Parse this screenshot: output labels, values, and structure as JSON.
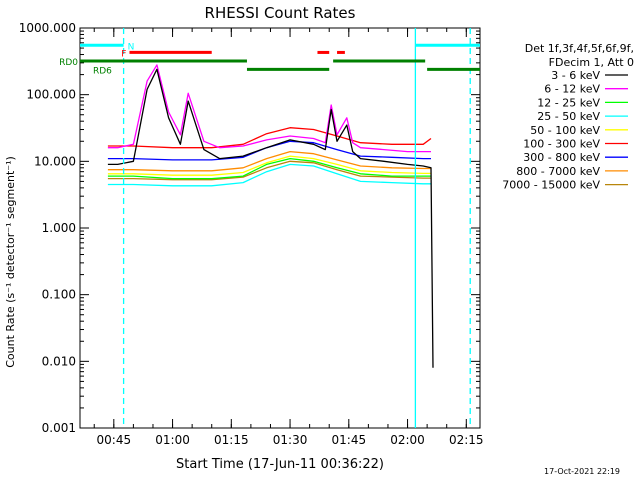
{
  "chart_data": {
    "type": "line",
    "title": "RHESSI Count Rates",
    "xlabel": "Start Time (17-Jun-11 00:36:22)",
    "ylabel": "Count Rate (s⁻¹ detector⁻¹ segment⁻¹)",
    "y_scale": "log",
    "ylim": [
      0.001,
      1000
    ],
    "y_ticks": [
      0.001,
      0.01,
      0.1,
      1,
      10,
      100,
      1000
    ],
    "y_tick_labels": [
      "0.001",
      "0.010",
      "0.100",
      "1.000",
      "10.000",
      "100.000",
      "1000.000"
    ],
    "xlim": [
      "00:36:22",
      "02:18:30"
    ],
    "x_tick_labels": [
      "00:45",
      "01:00",
      "01:15",
      "01:30",
      "01:45",
      "02:00",
      "02:15"
    ],
    "x_minor_step_minutes": 5,
    "grid": false,
    "legend_position": "right",
    "legend_header": [
      "Det 1f,3f,4f,5f,6f,9f,",
      "FDecim 1, Att 0"
    ],
    "data_start": "00:43:30",
    "data_end": "02:06:40",
    "series": [
      {
        "name": "3 - 6 keV",
        "color": "#000000",
        "x": [
          "00:43:30",
          "00:46:00",
          "00:50:00",
          "00:53:30",
          "00:56:00",
          "00:59:00",
          "01:02:00",
          "01:04:00",
          "01:08:00",
          "01:12:00",
          "01:18:00",
          "01:24:00",
          "01:30:00",
          "01:36:00",
          "01:39:00",
          "01:40:30",
          "01:42:00",
          "01:44:30",
          "01:46:00",
          "01:48:00",
          "01:54:00",
          "02:00:00",
          "02:04:00",
          "02:06:00",
          "02:06:30"
        ],
        "y": [
          9,
          9,
          10,
          120,
          240,
          45,
          18,
          80,
          15,
          11,
          12,
          16,
          21,
          18,
          15,
          60,
          20,
          35,
          14,
          11,
          10,
          9,
          8.5,
          8,
          0.008
        ]
      },
      {
        "name": "6 - 12 keV",
        "color": "#ff00ff",
        "x": [
          "00:43:30",
          "00:46:00",
          "00:50:00",
          "00:53:30",
          "00:56:00",
          "00:59:00",
          "01:02:00",
          "01:04:00",
          "01:08:00",
          "01:12:00",
          "01:18:00",
          "01:24:00",
          "01:30:00",
          "01:36:00",
          "01:39:00",
          "01:40:30",
          "01:42:00",
          "01:44:30",
          "01:46:00",
          "01:48:00",
          "01:54:00",
          "02:00:00",
          "02:04:00",
          "02:06:00"
        ],
        "y": [
          16,
          16,
          18,
          160,
          280,
          55,
          25,
          105,
          20,
          16,
          17,
          21,
          24,
          22,
          19,
          70,
          25,
          45,
          19,
          16,
          15,
          14,
          14,
          14
        ]
      },
      {
        "name": "12 - 25 keV",
        "color": "#00ff00",
        "x": [
          "00:43:30",
          "00:50:00",
          "01:00:00",
          "01:10:00",
          "01:18:00",
          "01:24:00",
          "01:30:00",
          "01:36:00",
          "01:42:00",
          "01:48:00",
          "01:56:00",
          "02:04:00",
          "02:06:00"
        ],
        "y": [
          6,
          6,
          5.5,
          5.5,
          6,
          9,
          11,
          10,
          8,
          6.5,
          6,
          6,
          6
        ]
      },
      {
        "name": "25 - 50 keV",
        "color": "#00ffff",
        "x": [
          "00:43:30",
          "00:50:00",
          "01:00:00",
          "01:10:00",
          "01:18:00",
          "01:24:00",
          "01:30:00",
          "01:36:00",
          "01:42:00",
          "01:48:00",
          "01:56:00",
          "02:04:00",
          "02:06:00"
        ],
        "y": [
          4.5,
          4.5,
          4.3,
          4.3,
          4.8,
          7,
          9,
          8.5,
          6.5,
          5,
          4.8,
          4.6,
          4.6
        ]
      },
      {
        "name": "50 - 100 keV",
        "color": "#ffff00",
        "x": [
          "00:43:30",
          "00:50:00",
          "01:00:00",
          "01:10:00",
          "01:18:00",
          "01:24:00",
          "01:30:00",
          "01:36:00",
          "01:42:00",
          "01:48:00",
          "01:56:00",
          "02:04:00",
          "02:06:00"
        ],
        "y": [
          6.5,
          6.5,
          6.2,
          6.2,
          6.8,
          9.5,
          12,
          11,
          9,
          7.2,
          6.8,
          6.6,
          6.6
        ]
      },
      {
        "name": "100 - 300 keV",
        "color": "#ff0000",
        "x": [
          "00:43:30",
          "00:50:00",
          "01:00:00",
          "01:10:00",
          "01:18:00",
          "01:24:00",
          "01:30:00",
          "01:36:00",
          "01:42:00",
          "01:48:00",
          "01:56:00",
          "02:04:00",
          "02:06:00"
        ],
        "y": [
          17,
          17,
          16,
          16,
          18,
          26,
          32,
          30,
          24,
          19,
          18,
          18,
          22
        ]
      },
      {
        "name": "300 - 800 keV",
        "color": "#0000ff",
        "x": [
          "00:43:30",
          "00:50:00",
          "01:00:00",
          "01:10:00",
          "01:18:00",
          "01:24:00",
          "01:30:00",
          "01:36:00",
          "01:42:00",
          "01:48:00",
          "01:56:00",
          "02:04:00",
          "02:06:00"
        ],
        "y": [
          11,
          11,
          10.5,
          10.5,
          11.5,
          16,
          20,
          19,
          15,
          12,
          11.5,
          11,
          11
        ]
      },
      {
        "name": "800 - 7000 keV",
        "color": "#ff8c00",
        "x": [
          "00:43:30",
          "00:50:00",
          "01:00:00",
          "01:10:00",
          "01:18:00",
          "01:24:00",
          "01:30:00",
          "01:36:00",
          "01:42:00",
          "01:48:00",
          "01:56:00",
          "02:04:00",
          "02:06:00"
        ],
        "y": [
          7.5,
          7.5,
          7.2,
          7.2,
          8,
          11,
          14,
          13,
          10.5,
          8.5,
          8,
          7.8,
          7.8
        ]
      },
      {
        "name": "7000 - 15000 keV",
        "color": "#b8860b",
        "x": [
          "00:43:30",
          "00:50:00",
          "01:00:00",
          "01:10:00",
          "01:18:00",
          "01:24:00",
          "01:30:00",
          "01:36:00",
          "01:42:00",
          "01:48:00",
          "01:56:00",
          "02:04:00",
          "02:06:00"
        ],
        "y": [
          5.5,
          5.5,
          5.3,
          5.3,
          5.8,
          8,
          10,
          9.5,
          7.5,
          6,
          5.8,
          5.6,
          5.6
        ]
      }
    ],
    "state_bars": [
      {
        "label": "N",
        "color": "#00ffff",
        "level": 550,
        "segments": [
          [
            "00:36:22",
            "00:47:30"
          ],
          [
            "02:02:00",
            "02:18:30"
          ]
        ]
      },
      {
        "label": "F",
        "color": "#ff0000",
        "level": 430,
        "segments": [
          [
            "00:49:00",
            "01:10:00"
          ],
          [
            "01:37:00",
            "01:40:00"
          ],
          [
            "01:42:00",
            "01:44:00"
          ]
        ]
      },
      {
        "label": "RD0",
        "color": "#008000",
        "level": 320,
        "segments": [
          [
            "00:36:22",
            "01:19:00"
          ],
          [
            "01:41:00",
            "02:04:30"
          ]
        ]
      },
      {
        "label": "RD6",
        "color": "#008000",
        "level": 240,
        "segments": [
          [
            "01:19:00",
            "01:40:00"
          ],
          [
            "02:05:00",
            "02:18:30"
          ]
        ]
      }
    ],
    "vertical_markers": [
      {
        "time": "00:47:30",
        "color": "#00ffff",
        "style": "dashed"
      },
      {
        "time": "02:02:00",
        "color": "#00ffff",
        "style": "solid"
      },
      {
        "time": "02:16:00",
        "color": "#00ffff",
        "style": "dashed"
      }
    ],
    "timestamp": "17-Oct-2021 22:19"
  }
}
